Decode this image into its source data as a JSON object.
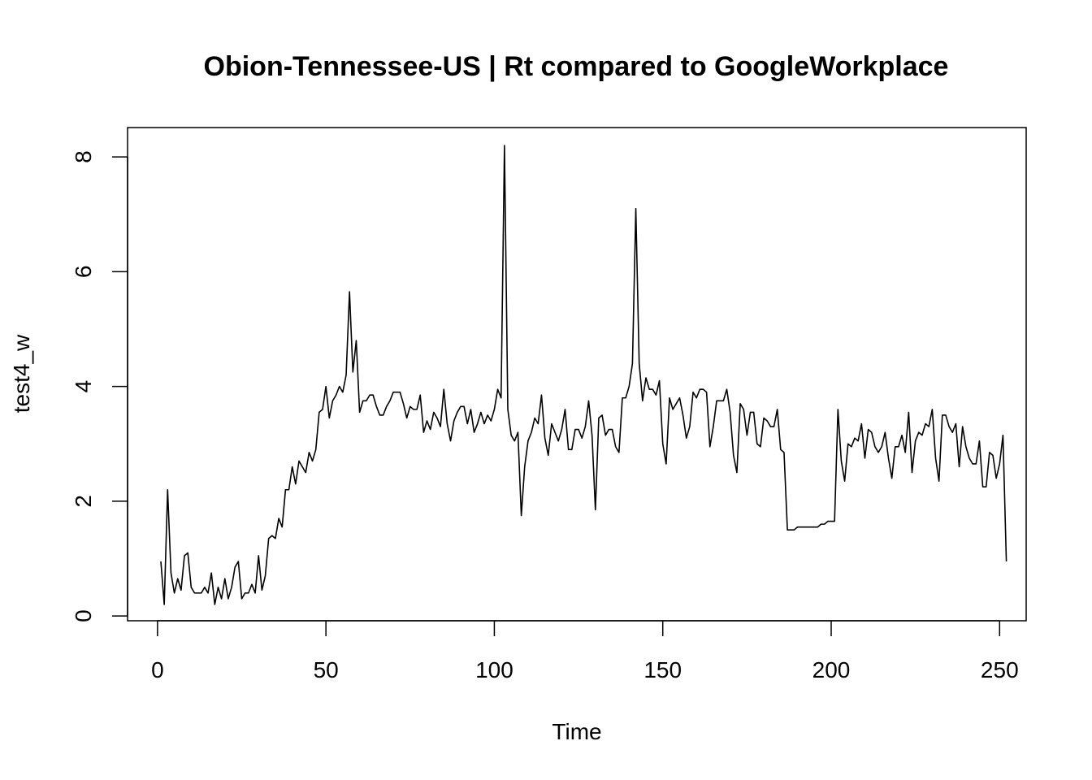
{
  "chart_data": {
    "type": "line",
    "title": "Obion-Tennessee-US | Rt compared to GoogleWorkplace",
    "xlabel": "Time",
    "ylabel": "test4_w",
    "xlim": [
      1,
      248
    ],
    "ylim": [
      0.2,
      8.2
    ],
    "x_ticks": [
      0,
      50,
      100,
      150,
      200,
      250
    ],
    "y_ticks": [
      0,
      2,
      4,
      6,
      8
    ],
    "grid": false,
    "legend": "none",
    "line_color": "#000000",
    "series": [
      {
        "x_start": 1,
        "values": [
          0.95,
          0.2,
          2.2,
          0.75,
          0.4,
          0.65,
          0.45,
          1.05,
          1.1,
          0.5,
          0.4,
          0.4,
          0.4,
          0.5,
          0.4,
          0.75,
          0.2,
          0.5,
          0.3,
          0.65,
          0.3,
          0.5,
          0.85,
          0.95,
          0.3,
          0.4,
          0.4,
          0.55,
          0.4,
          1.05,
          0.45,
          0.7,
          1.35,
          1.4,
          1.35,
          1.7,
          1.55,
          2.2,
          2.2,
          2.6,
          2.3,
          2.7,
          2.6,
          2.5,
          2.85,
          2.7,
          2.9,
          3.55,
          3.6,
          4.0,
          3.45,
          3.75,
          3.85,
          4.0,
          3.9,
          4.2,
          5.65,
          4.25,
          4.8,
          3.55,
          3.75,
          3.75,
          3.85,
          3.85,
          3.65,
          3.5,
          3.5,
          3.65,
          3.75,
          3.9,
          3.9,
          3.9,
          3.7,
          3.45,
          3.65,
          3.6,
          3.6,
          3.85,
          3.2,
          3.4,
          3.25,
          3.55,
          3.45,
          3.3,
          3.95,
          3.35,
          3.05,
          3.4,
          3.55,
          3.65,
          3.65,
          3.35,
          3.6,
          3.2,
          3.35,
          3.55,
          3.35,
          3.5,
          3.4,
          3.6,
          3.95,
          3.8,
          8.2,
          3.6,
          3.15,
          3.05,
          3.2,
          1.75,
          2.6,
          3.05,
          3.2,
          3.45,
          3.35,
          3.85,
          3.1,
          2.8,
          3.35,
          3.2,
          3.05,
          3.25,
          3.6,
          2.9,
          2.9,
          3.25,
          3.25,
          3.1,
          3.3,
          3.75,
          3.15,
          1.85,
          3.45,
          3.5,
          3.15,
          3.25,
          3.25,
          2.95,
          2.85,
          3.8,
          3.8,
          4.0,
          4.4,
          7.1,
          4.4,
          3.75,
          4.15,
          3.95,
          3.95,
          3.85,
          4.1,
          3.0,
          2.65,
          3.8,
          3.6,
          3.7,
          3.8,
          3.5,
          3.1,
          3.3,
          3.9,
          3.8,
          3.95,
          3.95,
          3.9,
          2.95,
          3.3,
          3.75,
          3.75,
          3.75,
          3.95,
          3.55,
          2.8,
          2.5,
          3.7,
          3.6,
          3.15,
          3.55,
          3.55,
          3.0,
          2.95,
          3.45,
          3.4,
          3.3,
          3.3,
          3.6,
          2.9,
          2.85,
          1.5,
          1.5,
          1.5,
          1.55,
          1.55,
          1.55,
          1.55,
          1.55,
          1.55,
          1.55,
          1.6,
          1.6,
          1.65,
          1.65,
          1.65,
          3.6,
          2.7,
          2.35,
          3.0,
          2.95,
          3.1,
          3.05,
          3.35,
          2.75,
          3.25,
          3.2,
          2.95,
          2.85,
          2.95,
          3.2,
          2.75,
          2.4,
          2.95,
          2.95,
          3.15,
          2.85,
          3.55,
          2.5,
          3.05,
          3.2,
          3.15,
          3.35,
          3.3,
          3.6,
          2.75,
          2.35,
          3.5,
          3.5,
          3.3,
          3.2,
          3.35,
          2.6,
          3.3,
          2.95,
          2.75,
          2.65,
          2.65,
          3.05,
          2.25,
          2.25,
          2.85,
          2.8,
          2.4,
          2.65,
          3.15,
          0.95
        ]
      }
    ]
  }
}
